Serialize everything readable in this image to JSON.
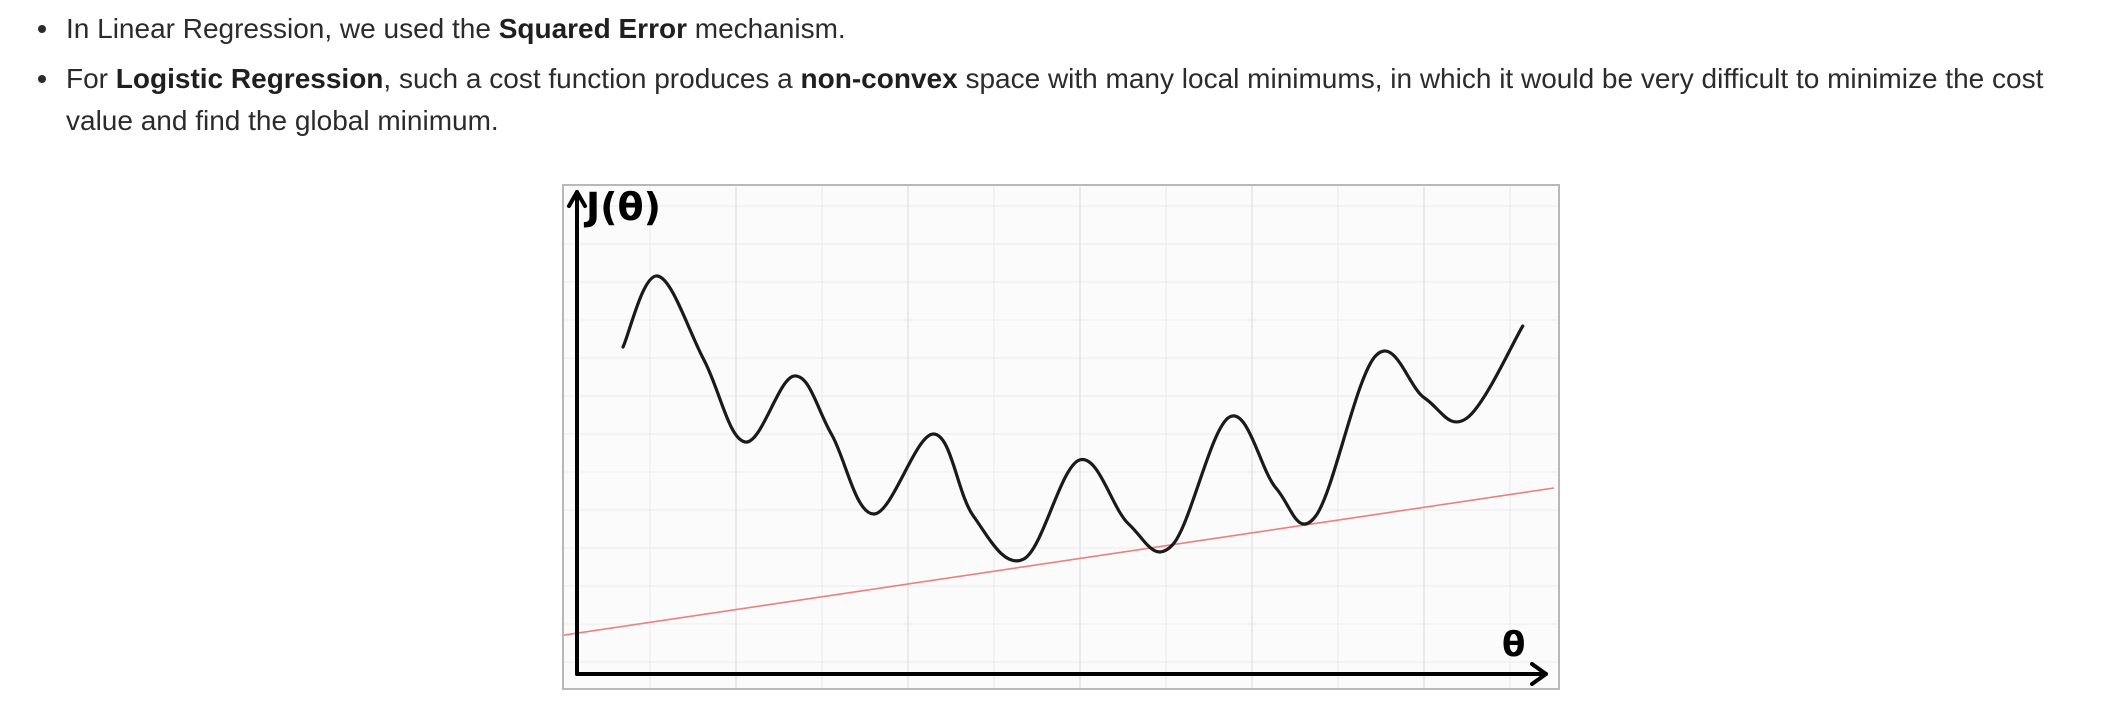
{
  "bullets": [
    {
      "parts": [
        {
          "text": "In Linear Regression, we used the ",
          "bold": false
        },
        {
          "text": "Squared Error",
          "bold": true
        },
        {
          "text": " mechanism.",
          "bold": false
        }
      ]
    },
    {
      "parts": [
        {
          "text": "For ",
          "bold": false
        },
        {
          "text": "Logistic Regression",
          "bold": true
        },
        {
          "text": ", such a cost function produces a ",
          "bold": false
        },
        {
          "text": "non-convex",
          "bold": true
        },
        {
          "text": " space with many local minimums, in which it would be very difficult to minimize the cost value and find the global minimum.",
          "bold": false
        }
      ]
    }
  ],
  "figure": {
    "y_axis_label": "J(θ)",
    "x_axis_label": "θ",
    "colors": {
      "curve": "#1a1a1a",
      "line": "#e8827e",
      "axes": "#000000",
      "grid": "#e6e6e6"
    }
  }
}
